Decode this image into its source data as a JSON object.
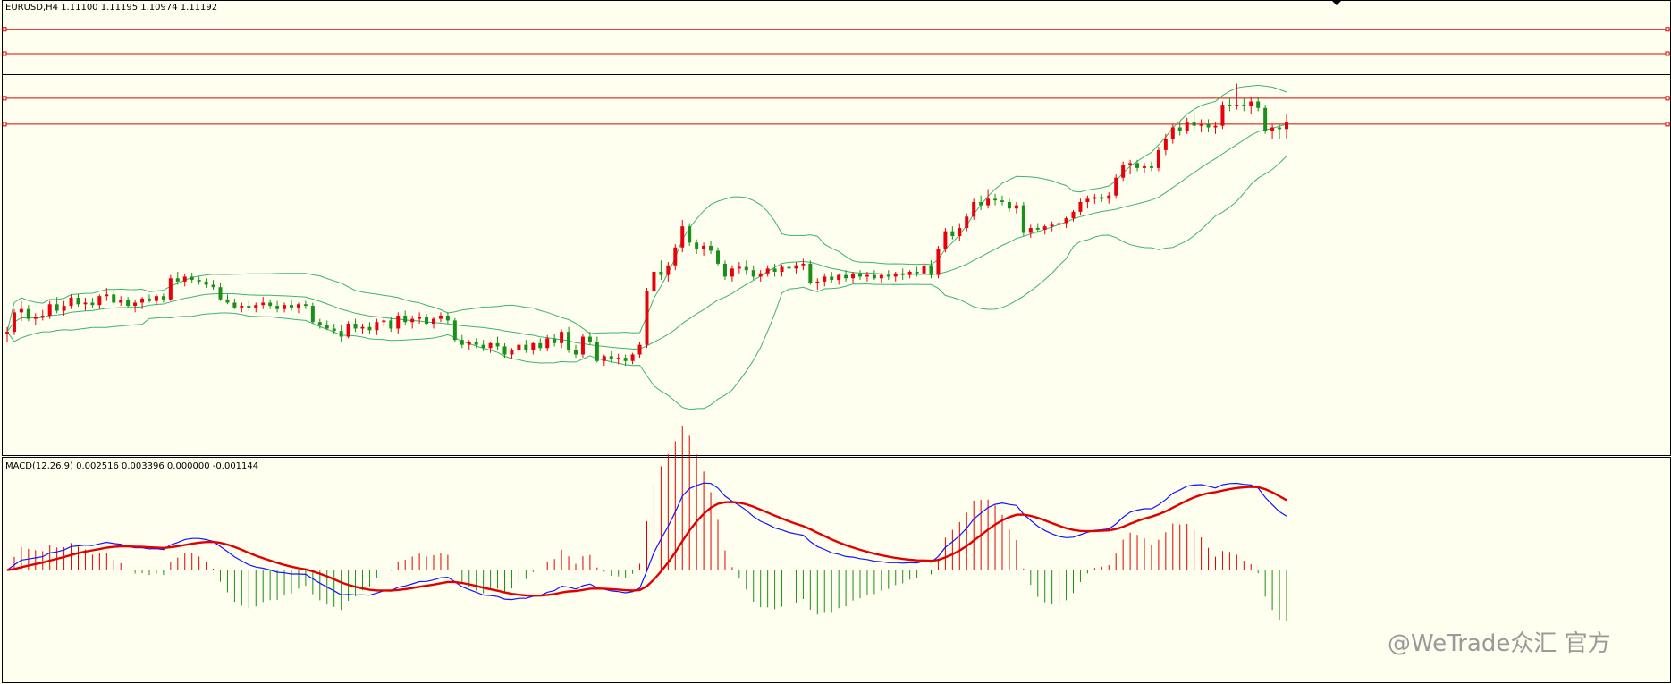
{
  "header": {
    "price_label": "EURUSD,H4  1.11100 1.11195 1.10974 1.11192"
  },
  "macd_panel": {
    "label": "MACD(12,26,9) 0.002516 0.003396 0.000000 -0.001144"
  },
  "watermark": "@WeTrade众汇 官方",
  "colors": {
    "background": "#fffff0",
    "bull": "#e8000b",
    "bear": "#1a8f1a",
    "bands": "#3cb371",
    "level": "#e10000",
    "current_price_line": "#000000",
    "macd_main": "#1414ff",
    "macd_signal": "#e10000",
    "hist_positive": "#e10000",
    "hist_negative": "#1a8f1a"
  },
  "chart_data": [
    {
      "type": "candlestick",
      "symbol": "EURUSD",
      "timeframe": "H4",
      "ohlc_display": {
        "open": 1.111,
        "high": 1.11195,
        "low": 1.10974,
        "close": 1.11192
      },
      "ylim": [
        1.065,
        1.121
      ],
      "horizontal_levels": [
        1.1175,
        1.1145,
        1.109,
        1.1058
      ],
      "current_price": 1.1119,
      "indicators": [
        "Bollinger Bands"
      ],
      "candles": [
        [
          1.08,
          1.0808,
          1.079,
          1.0802
        ],
        [
          1.0802,
          1.083,
          1.0798,
          1.0826
        ],
        [
          1.0826,
          1.084,
          1.0815,
          1.083
        ],
        [
          1.083,
          1.0835,
          1.0815,
          1.0818
        ],
        [
          1.0818,
          1.0825,
          1.081,
          1.082
        ],
        [
          1.082,
          1.0829,
          1.0816,
          1.0822
        ],
        [
          1.0822,
          1.084,
          1.0818,
          1.0836
        ],
        [
          1.0836,
          1.0845,
          1.0825,
          1.0828
        ],
        [
          1.0828,
          1.084,
          1.0822,
          1.0834
        ],
        [
          1.0834,
          1.0848,
          1.083,
          1.0844
        ],
        [
          1.0844,
          1.0849,
          1.0833,
          1.0836
        ],
        [
          1.0836,
          1.0844,
          1.0828,
          1.0838
        ],
        [
          1.0838,
          1.0844,
          1.0832,
          1.0835
        ],
        [
          1.0835,
          1.0848,
          1.083,
          1.0846
        ],
        [
          1.0846,
          1.0856,
          1.084,
          1.0848
        ],
        [
          1.0848,
          1.0852,
          1.0835,
          1.0838
        ],
        [
          1.0838,
          1.0846,
          1.0834,
          1.0841
        ],
        [
          1.0841,
          1.0845,
          1.0832,
          1.0834
        ],
        [
          1.0834,
          1.0842,
          1.0826,
          1.0838
        ],
        [
          1.0838,
          1.0845,
          1.083,
          1.0843
        ],
        [
          1.0843,
          1.0848,
          1.0838,
          1.084
        ],
        [
          1.084,
          1.0848,
          1.0835,
          1.0846
        ],
        [
          1.0846,
          1.0849,
          1.0838,
          1.0842
        ],
        [
          1.0842,
          1.0872,
          1.084,
          1.0868
        ],
        [
          1.0868,
          1.0876,
          1.086,
          1.0864
        ],
        [
          1.0864,
          1.0874,
          1.0858,
          1.087
        ],
        [
          1.087,
          1.0875,
          1.0862,
          1.0866
        ],
        [
          1.0866,
          1.087,
          1.086,
          1.0864
        ],
        [
          1.0864,
          1.0868,
          1.0856,
          1.086
        ],
        [
          1.086,
          1.0866,
          1.0854,
          1.0857
        ],
        [
          1.0857,
          1.0862,
          1.084,
          1.0842
        ],
        [
          1.0842,
          1.0848,
          1.0836,
          1.0838
        ],
        [
          1.0838,
          1.0843,
          1.083,
          1.0832
        ],
        [
          1.0832,
          1.0838,
          1.0826,
          1.0834
        ],
        [
          1.0834,
          1.084,
          1.0828,
          1.0831
        ],
        [
          1.0831,
          1.0838,
          1.0826,
          1.0835
        ],
        [
          1.0835,
          1.0845,
          1.083,
          1.0838
        ],
        [
          1.0838,
          1.0842,
          1.083,
          1.0834
        ],
        [
          1.0834,
          1.084,
          1.0826,
          1.083
        ],
        [
          1.083,
          1.0838,
          1.0826,
          1.0835
        ],
        [
          1.0835,
          1.0842,
          1.0828,
          1.0832
        ],
        [
          1.0832,
          1.0838,
          1.0825,
          1.0836
        ],
        [
          1.0836,
          1.084,
          1.083,
          1.0834
        ],
        [
          1.0834,
          1.0838,
          1.0812,
          1.0814
        ],
        [
          1.0814,
          1.0818,
          1.0806,
          1.081
        ],
        [
          1.081,
          1.0816,
          1.0804,
          1.0806
        ],
        [
          1.0806,
          1.0812,
          1.08,
          1.0803
        ],
        [
          1.0803,
          1.081,
          1.079,
          1.0796
        ],
        [
          1.0796,
          1.0815,
          1.0794,
          1.0812
        ],
        [
          1.0812,
          1.0818,
          1.0802,
          1.0806
        ],
        [
          1.0806,
          1.0812,
          1.08,
          1.0808
        ],
        [
          1.0808,
          1.0814,
          1.08,
          1.0804
        ],
        [
          1.0804,
          1.0818,
          1.0798,
          1.0814
        ],
        [
          1.0814,
          1.0822,
          1.0808,
          1.0816
        ],
        [
          1.0816,
          1.082,
          1.0802,
          1.0806
        ],
        [
          1.0806,
          1.0826,
          1.08,
          1.0822
        ],
        [
          1.0822,
          1.0828,
          1.081,
          1.0814
        ],
        [
          1.0814,
          1.0822,
          1.0806,
          1.0818
        ],
        [
          1.0818,
          1.0826,
          1.0812,
          1.082
        ],
        [
          1.082,
          1.0824,
          1.081,
          1.0812
        ],
        [
          1.0812,
          1.082,
          1.0806,
          1.0818
        ],
        [
          1.0818,
          1.0826,
          1.0814,
          1.0822
        ],
        [
          1.0822,
          1.0826,
          1.0812,
          1.0816
        ],
        [
          1.0816,
          1.0819,
          1.079,
          1.0792
        ],
        [
          1.0792,
          1.0798,
          1.0782,
          1.0786
        ],
        [
          1.0786,
          1.0792,
          1.078,
          1.0789
        ],
        [
          1.0789,
          1.0794,
          1.0782,
          1.0786
        ],
        [
          1.0786,
          1.0792,
          1.0778,
          1.0782
        ],
        [
          1.0782,
          1.079,
          1.0776,
          1.0788
        ],
        [
          1.0788,
          1.0796,
          1.078,
          1.0784
        ],
        [
          1.0784,
          1.0788,
          1.077,
          1.0774
        ],
        [
          1.0774,
          1.0782,
          1.0768,
          1.078
        ],
        [
          1.078,
          1.079,
          1.0774,
          1.0786
        ],
        [
          1.0786,
          1.0792,
          1.0776,
          1.078
        ],
        [
          1.078,
          1.079,
          1.0774,
          1.0788
        ],
        [
          1.0788,
          1.0794,
          1.0778,
          1.0782
        ],
        [
          1.0782,
          1.0798,
          1.0778,
          1.0794
        ],
        [
          1.0794,
          1.08,
          1.0784,
          1.0788
        ],
        [
          1.0788,
          1.0805,
          1.0782,
          1.0802
        ],
        [
          1.0802,
          1.0808,
          1.0776,
          1.078
        ],
        [
          1.078,
          1.0786,
          1.077,
          1.0774
        ],
        [
          1.0774,
          1.08,
          1.077,
          1.0796
        ],
        [
          1.0796,
          1.0802,
          1.0786,
          1.079
        ],
        [
          1.079,
          1.0796,
          1.0764,
          1.0766
        ],
        [
          1.0766,
          1.0774,
          1.076,
          1.0772
        ],
        [
          1.0772,
          1.0778,
          1.0764,
          1.0768
        ],
        [
          1.0768,
          1.0775,
          1.0762,
          1.077
        ],
        [
          1.077,
          1.0774,
          1.076,
          1.0766
        ],
        [
          1.0766,
          1.0776,
          1.0762,
          1.0774
        ],
        [
          1.0774,
          1.079,
          1.077,
          1.0786
        ],
        [
          1.0786,
          1.0856,
          1.0782,
          1.0852
        ],
        [
          1.0852,
          1.088,
          1.0846,
          1.0876
        ],
        [
          1.0876,
          1.089,
          1.0866,
          1.0872
        ],
        [
          1.0872,
          1.0888,
          1.0864,
          1.0884
        ],
        [
          1.0884,
          1.091,
          1.0878,
          1.0906
        ],
        [
          1.0906,
          1.094,
          1.09,
          1.0932
        ],
        [
          1.0932,
          1.0936,
          1.0908,
          1.0912
        ],
        [
          1.0912,
          1.0916,
          1.0898,
          1.0904
        ],
        [
          1.0904,
          1.0912,
          1.0896,
          1.0908
        ],
        [
          1.0908,
          1.0914,
          1.0898,
          1.0902
        ],
        [
          1.0902,
          1.0906,
          1.0884,
          1.0886
        ],
        [
          1.0886,
          1.089,
          1.0866,
          1.087
        ],
        [
          1.087,
          1.0884,
          1.0864,
          1.088
        ],
        [
          1.088,
          1.0888,
          1.0874,
          1.0882
        ],
        [
          1.0882,
          1.089,
          1.0872,
          1.0878
        ],
        [
          1.0878,
          1.0884,
          1.0866,
          1.087
        ],
        [
          1.087,
          1.0878,
          1.0864,
          1.0874
        ],
        [
          1.0874,
          1.0884,
          1.087,
          1.088
        ],
        [
          1.088,
          1.0886,
          1.087,
          1.0876
        ],
        [
          1.0876,
          1.0885,
          1.087,
          1.0882
        ],
        [
          1.0882,
          1.089,
          1.0876,
          1.088
        ],
        [
          1.088,
          1.0888,
          1.0874,
          1.0884
        ],
        [
          1.0884,
          1.0892,
          1.0878,
          1.0886
        ],
        [
          1.0886,
          1.089,
          1.086,
          1.0862
        ],
        [
          1.0862,
          1.0868,
          1.0854,
          1.0864
        ],
        [
          1.0864,
          1.0874,
          1.0858,
          1.087
        ],
        [
          1.087,
          1.0876,
          1.0862,
          1.0866
        ],
        [
          1.0866,
          1.0874,
          1.086,
          1.0872
        ],
        [
          1.0872,
          1.0878,
          1.0864,
          1.0868
        ],
        [
          1.0868,
          1.0876,
          1.0862,
          1.0874
        ],
        [
          1.0874,
          1.0878,
          1.0866,
          1.087
        ],
        [
          1.087,
          1.0876,
          1.0864,
          1.0872
        ],
        [
          1.0872,
          1.0878,
          1.0866,
          1.0868
        ],
        [
          1.0868,
          1.0874,
          1.0862,
          1.0872
        ],
        [
          1.0872,
          1.0878,
          1.0866,
          1.087
        ],
        [
          1.087,
          1.0876,
          1.0864,
          1.0874
        ],
        [
          1.0874,
          1.088,
          1.0866,
          1.0872
        ],
        [
          1.0872,
          1.0878,
          1.0868,
          1.0876
        ],
        [
          1.0876,
          1.0882,
          1.087,
          1.0874
        ],
        [
          1.0874,
          1.0888,
          1.087,
          1.0884
        ],
        [
          1.0884,
          1.089,
          1.0868,
          1.0872
        ],
        [
          1.0872,
          1.0908,
          1.0868,
          1.0904
        ],
        [
          1.0904,
          1.093,
          1.09,
          1.0926
        ],
        [
          1.0926,
          1.0932,
          1.0916,
          1.092
        ],
        [
          1.092,
          1.0936,
          1.0914,
          1.093
        ],
        [
          1.093,
          1.0948,
          1.0926,
          1.0944
        ],
        [
          1.0944,
          1.0966,
          1.094,
          1.0962
        ],
        [
          1.0962,
          1.097,
          1.0952,
          1.0958
        ],
        [
          1.0958,
          1.0978,
          1.0954,
          1.0966
        ],
        [
          1.0966,
          1.0972,
          1.0958,
          1.0964
        ],
        [
          1.0964,
          1.097,
          1.0958,
          1.0962
        ],
        [
          1.0962,
          1.0966,
          1.095,
          1.0954
        ],
        [
          1.0954,
          1.0962,
          1.0948,
          1.0958
        ],
        [
          1.0958,
          1.0962,
          1.092,
          1.0924
        ],
        [
          1.0924,
          1.0934,
          1.0918,
          1.093
        ],
        [
          1.093,
          1.0936,
          1.0924,
          1.0928
        ],
        [
          1.0928,
          1.0934,
          1.0922,
          1.0932
        ],
        [
          1.0932,
          1.0938,
          1.0926,
          1.0934
        ],
        [
          1.0934,
          1.094,
          1.0928,
          1.0936
        ],
        [
          1.0936,
          1.0944,
          1.093,
          1.0942
        ],
        [
          1.0942,
          1.0952,
          1.0938,
          1.095
        ],
        [
          1.095,
          1.0966,
          1.0946,
          1.0962
        ],
        [
          1.0962,
          1.097,
          1.0954,
          1.0966
        ],
        [
          1.0966,
          1.0972,
          1.096,
          1.0968
        ],
        [
          1.0968,
          1.0972,
          1.0962,
          1.0966
        ],
        [
          1.0966,
          1.0974,
          1.096,
          1.097
        ],
        [
          1.097,
          1.0996,
          1.0966,
          1.0992
        ],
        [
          1.0992,
          1.1012,
          1.0988,
          1.1008
        ],
        [
          1.1008,
          1.1014,
          1.0996,
          1.101
        ],
        [
          1.101,
          1.1014,
          1.1,
          1.1004
        ],
        [
          1.1004,
          1.101,
          1.0998,
          1.1006
        ],
        [
          1.1006,
          1.1012,
          1.1,
          1.1004
        ],
        [
          1.1004,
          1.103,
          1.1,
          1.1026
        ],
        [
          1.1026,
          1.1046,
          1.102,
          1.104
        ],
        [
          1.104,
          1.1058,
          1.1034,
          1.1054
        ],
        [
          1.1054,
          1.106,
          1.1044,
          1.105
        ],
        [
          1.105,
          1.1066,
          1.1046,
          1.106
        ],
        [
          1.106,
          1.1072,
          1.105,
          1.1056
        ],
        [
          1.1056,
          1.1064,
          1.1048,
          1.1058
        ],
        [
          1.1058,
          1.1064,
          1.1048,
          1.1054
        ],
        [
          1.1054,
          1.106,
          1.1046,
          1.1056
        ],
        [
          1.1056,
          1.1086,
          1.1052,
          1.1082
        ],
        [
          1.1082,
          1.109,
          1.1074,
          1.108
        ],
        [
          1.108,
          1.1108,
          1.1076,
          1.1082
        ],
        [
          1.1082,
          1.109,
          1.1074,
          1.108
        ],
        [
          1.108,
          1.1092,
          1.107,
          1.1086
        ],
        [
          1.1086,
          1.1092,
          1.1074,
          1.1078
        ],
        [
          1.1078,
          1.1082,
          1.1046,
          1.105
        ],
        [
          1.105,
          1.1058,
          1.104,
          1.1054
        ],
        [
          1.1054,
          1.1058,
          1.104,
          1.1052
        ],
        [
          1.1052,
          1.107,
          1.104,
          1.106
        ]
      ],
      "bollinger_bands": {
        "period": 20,
        "deviations": 2
      }
    },
    {
      "type": "line",
      "indicator": "MACD",
      "params": [
        12,
        26,
        9
      ],
      "values_display": [
        0.002516,
        0.003396,
        0.0,
        -0.001144
      ],
      "ylim": [
        -0.0042,
        0.0042
      ],
      "histogram": "main minus signal"
    }
  ]
}
